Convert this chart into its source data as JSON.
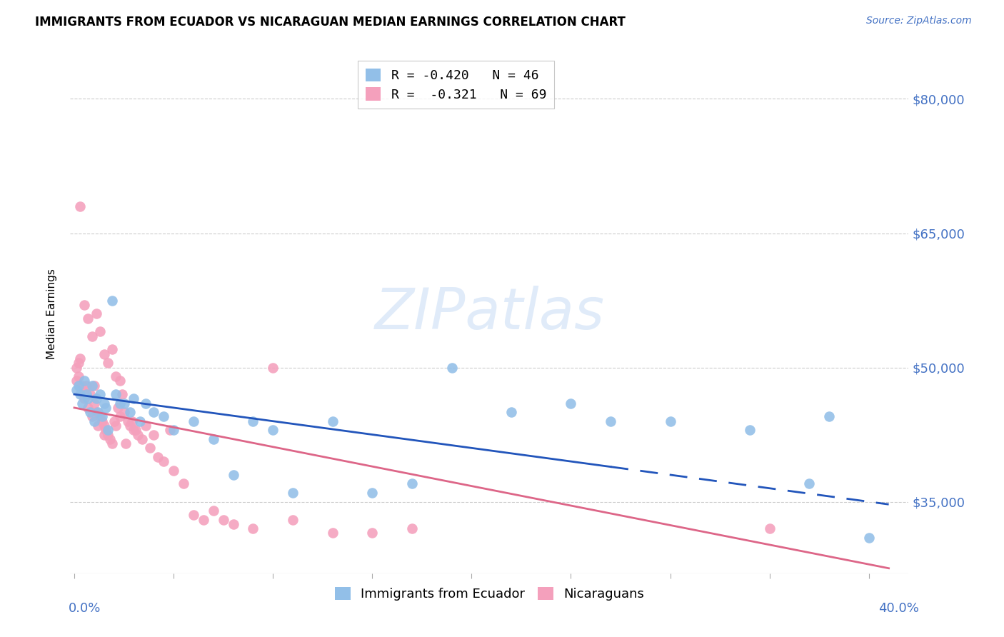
{
  "title": "IMMIGRANTS FROM ECUADOR VS NICARAGUAN MEDIAN EARNINGS CORRELATION CHART",
  "source": "Source: ZipAtlas.com",
  "ylabel": "Median Earnings",
  "ylim": [
    27000,
    85000
  ],
  "xlim": [
    -0.002,
    0.42
  ],
  "ecuador_color": "#92bfe8",
  "nicaragua_color": "#f4a0bc",
  "ecuador_line_color": "#2255bb",
  "nicaragua_line_color": "#dd6688",
  "ecuador_x": [
    0.001,
    0.002,
    0.003,
    0.004,
    0.005,
    0.006,
    0.007,
    0.008,
    0.009,
    0.01,
    0.011,
    0.012,
    0.013,
    0.014,
    0.015,
    0.016,
    0.017,
    0.019,
    0.021,
    0.023,
    0.025,
    0.028,
    0.03,
    0.033,
    0.036,
    0.04,
    0.045,
    0.05,
    0.06,
    0.07,
    0.08,
    0.09,
    0.1,
    0.11,
    0.13,
    0.15,
    0.17,
    0.19,
    0.22,
    0.25,
    0.27,
    0.3,
    0.34,
    0.37,
    0.38,
    0.4
  ],
  "ecuador_y": [
    47500,
    48000,
    47000,
    46000,
    48500,
    47000,
    46500,
    45000,
    48000,
    44000,
    46500,
    45000,
    47000,
    44500,
    46000,
    45500,
    43000,
    57500,
    47000,
    46000,
    46000,
    45000,
    46500,
    44000,
    46000,
    45000,
    44500,
    43000,
    44000,
    42000,
    38000,
    44000,
    43000,
    36000,
    44000,
    36000,
    37000,
    50000,
    45000,
    46000,
    44000,
    44000,
    43000,
    37000,
    44500,
    31000
  ],
  "nicaragua_x": [
    0.001,
    0.001,
    0.002,
    0.002,
    0.003,
    0.004,
    0.005,
    0.005,
    0.006,
    0.007,
    0.008,
    0.009,
    0.01,
    0.01,
    0.011,
    0.012,
    0.013,
    0.014,
    0.015,
    0.015,
    0.016,
    0.017,
    0.018,
    0.019,
    0.02,
    0.021,
    0.022,
    0.023,
    0.024,
    0.025,
    0.026,
    0.027,
    0.028,
    0.029,
    0.03,
    0.031,
    0.032,
    0.034,
    0.036,
    0.038,
    0.04,
    0.042,
    0.045,
    0.048,
    0.05,
    0.055,
    0.06,
    0.065,
    0.07,
    0.075,
    0.08,
    0.09,
    0.1,
    0.11,
    0.13,
    0.15,
    0.003,
    0.005,
    0.007,
    0.009,
    0.011,
    0.013,
    0.015,
    0.017,
    0.019,
    0.021,
    0.023,
    0.17,
    0.35
  ],
  "nicaragua_y": [
    48500,
    50000,
    49000,
    50500,
    51000,
    48000,
    47500,
    46500,
    48000,
    45500,
    47000,
    44500,
    46000,
    48000,
    45000,
    43500,
    44500,
    44000,
    42500,
    43500,
    43000,
    42500,
    42000,
    41500,
    44000,
    43500,
    45500,
    44500,
    47000,
    45000,
    41500,
    44000,
    43500,
    44000,
    43000,
    43000,
    42500,
    42000,
    43500,
    41000,
    42500,
    40000,
    39500,
    43000,
    38500,
    37000,
    33500,
    33000,
    34000,
    33000,
    32500,
    32000,
    50000,
    33000,
    31500,
    31500,
    68000,
    57000,
    55500,
    53500,
    56000,
    54000,
    51500,
    50500,
    52000,
    49000,
    48500,
    32000,
    32000
  ],
  "ytick_values": [
    35000,
    50000,
    65000,
    80000
  ],
  "ytick_labels": [
    "$35,000",
    "$50,000",
    "$65,000",
    "$80,000"
  ],
  "xtick_values": [
    0.0,
    0.05,
    0.1,
    0.15,
    0.2,
    0.25,
    0.3,
    0.35,
    0.4
  ],
  "legend_text_1": "R = -0.420   N = 46",
  "legend_text_2": "R =  -0.321   N = 69",
  "bottom_legend_1": "Immigrants from Ecuador",
  "bottom_legend_2": "Nicaraguans"
}
